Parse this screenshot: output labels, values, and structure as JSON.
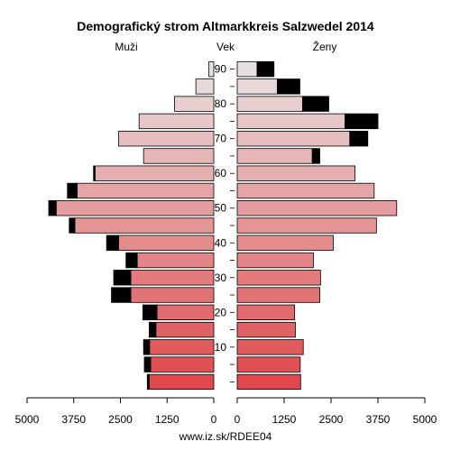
{
  "chart_data": {
    "type": "bar",
    "title": "Demografický strom Altmarkkreis Salzwedel 2014",
    "left_label": "Muži",
    "center_label": "Vek",
    "right_label": "Ženy",
    "footer": "www.iz.sk/RDEE04",
    "age_ticks": [
      10,
      20,
      30,
      40,
      50,
      60,
      70,
      80,
      90
    ],
    "x_ticks_left": [
      "5000",
      "3750",
      "2500",
      "1250",
      "0"
    ],
    "x_ticks_right": [
      "0",
      "1250",
      "2500",
      "3750",
      "5000"
    ],
    "xlim": [
      0,
      5000
    ],
    "age_groups": [
      "0-4",
      "5-9",
      "10-14",
      "15-19",
      "20-24",
      "25-29",
      "30-34",
      "35-39",
      "40-44",
      "45-49",
      "50-54",
      "55-59",
      "60-64",
      "65-69",
      "70-74",
      "75-79",
      "80-84",
      "85-89",
      "90+"
    ],
    "series": [
      {
        "name": "Muži",
        "values": [
          1730,
          1690,
          1720,
          1550,
          1520,
          2220,
          2220,
          2050,
          2550,
          3720,
          4220,
          3660,
          3180,
          1880,
          2550,
          2000,
          1050,
          480,
          130
        ],
        "overlay": [
          50,
          170,
          160,
          180,
          380,
          520,
          460,
          300,
          320,
          150,
          200,
          260,
          40,
          0,
          0,
          0,
          0,
          0,
          0
        ]
      },
      {
        "name": "Ženy",
        "values": [
          1690,
          1680,
          1760,
          1550,
          1530,
          2200,
          2220,
          2030,
          2560,
          3710,
          4250,
          3650,
          3140,
          2000,
          3000,
          2870,
          1740,
          1070,
          530
        ],
        "overlay": [
          0,
          0,
          0,
          0,
          0,
          0,
          0,
          0,
          0,
          0,
          0,
          0,
          0,
          200,
          480,
          880,
          700,
          600,
          450
        ]
      }
    ],
    "colors": {
      "overlay": "#000000",
      "low_age": "#e0494c",
      "high_age": "#e8e0e0"
    }
  }
}
